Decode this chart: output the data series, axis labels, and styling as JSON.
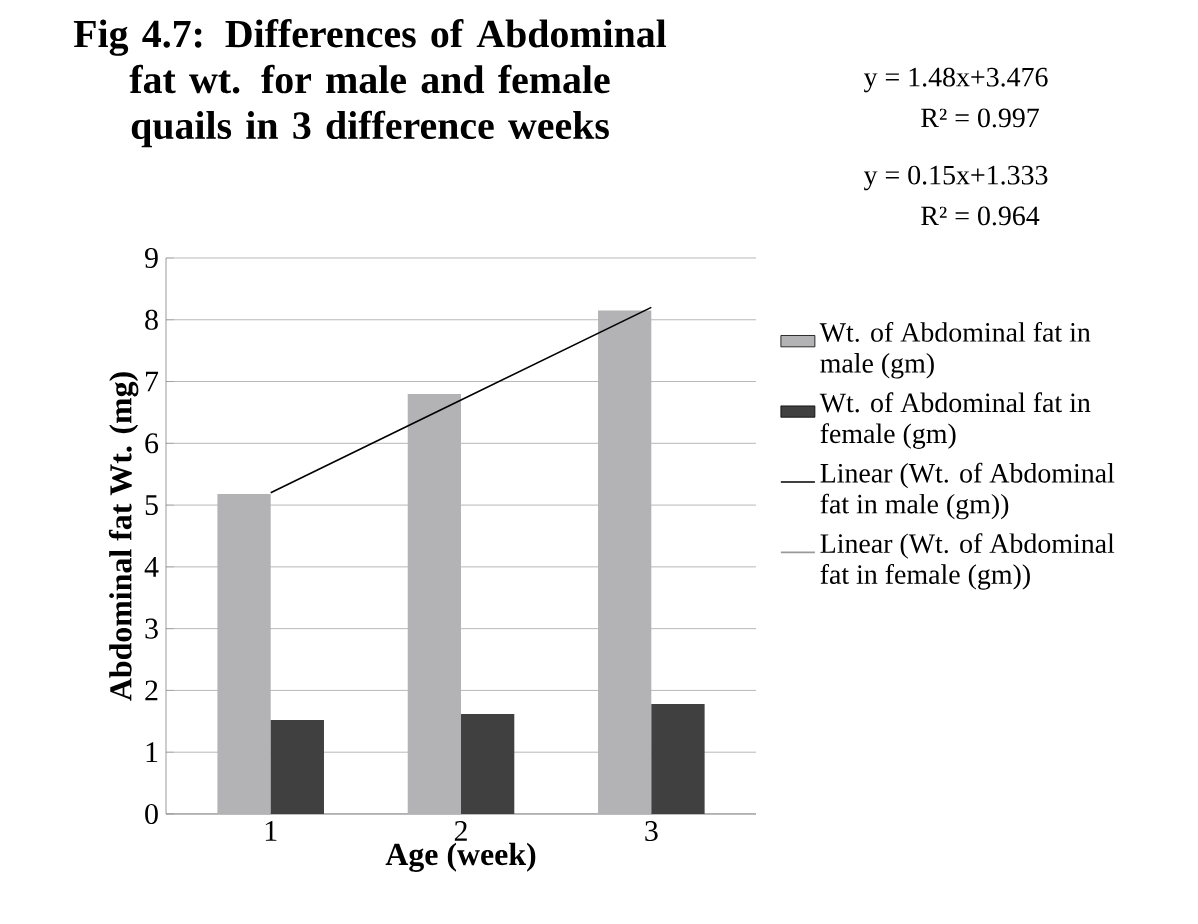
{
  "chart_data": {
    "type": "bar",
    "title": "Fig 4.7: Differences of Abdominal fat wt. for male and female quails in 3 difference weeks",
    "xlabel": "Age (week)",
    "ylabel": "Abdominal fat Wt. (mg)",
    "categories": [
      "1",
      "2",
      "3"
    ],
    "series": [
      {
        "name": "Wt. of Abdominal fat in male (gm)",
        "color": "#b3b3b6",
        "values": [
          5.18,
          6.8,
          8.15
        ]
      },
      {
        "name": "Wt. of Abdominal fat in female (gm)",
        "color": "#404040",
        "values": [
          1.52,
          1.62,
          1.78
        ]
      },
      {
        "type": "line",
        "name": "Linear (Wt. of Abdominal fat in male (gm))",
        "color": "#000000",
        "values": [
          5.2,
          6.7,
          8.2
        ]
      },
      {
        "type": "line",
        "name": "Linear (Wt. of Abdominal fat in female (gm))",
        "color": "#999999",
        "values": [
          null,
          null,
          null
        ]
      }
    ],
    "ylim": [
      0,
      9
    ],
    "yticks": [
      0,
      1,
      2,
      3,
      4,
      5,
      6,
      7,
      8,
      9
    ],
    "grid": "y",
    "legend": "right",
    "annotations": [
      "y =  1.48x+3.476",
      "R² = 0.997",
      "y =  0.15x+1.333",
      "R² = 0.964"
    ]
  }
}
